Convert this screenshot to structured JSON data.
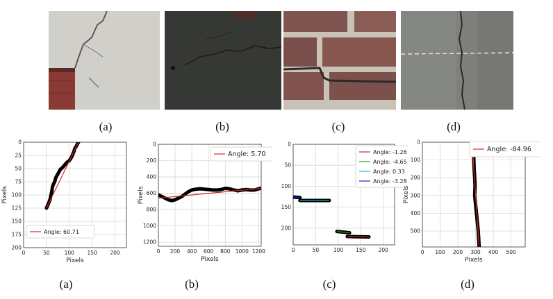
{
  "photos": [
    {
      "caption": "(a)",
      "kind": "stucco wall with crack and brick corner"
    },
    {
      "caption": "(b)",
      "kind": "dark concrete surface with crack"
    },
    {
      "caption": "(c)",
      "kind": "brick wall with stepped mortar crack"
    },
    {
      "caption": "(d)",
      "kind": "asphalt road with longitudinal crack"
    }
  ],
  "colors": {
    "crack": "#000000",
    "fit_red": "#d62728",
    "fit_green": "#2ca02c",
    "fit_cyan": "#17becf",
    "fit_blue": "#1f1fd6",
    "grid": "#d9d9d9"
  },
  "chart_data": [
    {
      "type": "line",
      "caption": "(a)",
      "xlabel": "Pixels",
      "ylabel": "Pixels",
      "xlim": [
        0,
        225
      ],
      "ylim": [
        200,
        0
      ],
      "xticks": [
        "0",
        "50",
        "100",
        "150",
        "200"
      ],
      "yticks": [
        "0",
        "25",
        "50",
        "75",
        "100",
        "125",
        "150",
        "175",
        "200"
      ],
      "legend_loc": "lower-left",
      "series": [
        {
          "name": "Angle: 60.71",
          "kind": "fit",
          "color": "#d62728",
          "x": [
            50,
            120
          ],
          "y": [
            125,
            0
          ]
        }
      ],
      "crack": {
        "x": [
          50,
          55,
          58,
          60,
          62,
          63,
          65,
          68,
          70,
          75,
          80,
          85,
          90,
          95,
          100,
          105,
          110,
          112,
          115,
          118,
          120
        ],
        "y": [
          125,
          115,
          108,
          100,
          92,
          85,
          80,
          75,
          68,
          60,
          52,
          48,
          43,
          38,
          35,
          28,
          18,
          12,
          8,
          3,
          0
        ]
      }
    },
    {
      "type": "line",
      "caption": "(b)",
      "xlabel": "Pixels",
      "ylabel": "Pixels",
      "xlim": [
        0,
        1230
      ],
      "ylim": [
        1250,
        0
      ],
      "xticks": [
        "0",
        "200",
        "400",
        "600",
        "800",
        "1000",
        "1200"
      ],
      "yticks": [
        "0",
        "200",
        "400",
        "600",
        "800",
        "1000",
        "1200"
      ],
      "legend_loc": "upper-right",
      "series": [
        {
          "name": "Angle: 5.70",
          "kind": "fit",
          "color": "#d62728",
          "x": [
            0,
            1230
          ],
          "y": [
            660,
            540
          ]
        }
      ],
      "crack": {
        "x": [
          0,
          40,
          80,
          120,
          160,
          200,
          240,
          280,
          320,
          360,
          400,
          450,
          500,
          550,
          600,
          650,
          700,
          750,
          800,
          850,
          900,
          950,
          1000,
          1050,
          1100,
          1150,
          1200,
          1230
        ],
        "y": [
          620,
          640,
          660,
          680,
          690,
          680,
          660,
          640,
          610,
          580,
          560,
          550,
          545,
          550,
          555,
          560,
          560,
          555,
          540,
          545,
          560,
          570,
          560,
          555,
          560,
          560,
          545,
          540
        ]
      }
    },
    {
      "type": "line",
      "caption": "(c)",
      "xlabel": "",
      "ylabel": "",
      "xlim": [
        0,
        225
      ],
      "ylim": [
        240,
        0
      ],
      "xticks": [
        "0",
        "50",
        "100",
        "150",
        "200"
      ],
      "yticks": [
        "0",
        "50",
        "100",
        "150",
        "200"
      ],
      "legend_loc": "upper-right",
      "series": [
        {
          "name": "Angle: -1.26",
          "kind": "fit",
          "color": "#d62728",
          "x": [
            120,
            168
          ],
          "y": [
            220,
            221
          ]
        },
        {
          "name": "Angle: -4.65",
          "kind": "fit",
          "color": "#2ca02c",
          "x": [
            97,
            125
          ],
          "y": [
            208,
            211
          ]
        },
        {
          "name": "Angle: 0.33",
          "kind": "fit",
          "color": "#17becf",
          "x": [
            15,
            80
          ],
          "y": [
            134,
            134
          ]
        },
        {
          "name": "Angle: -3.28",
          "kind": "fit",
          "color": "#1f1fd6",
          "x": [
            0,
            15
          ],
          "y": [
            126,
            127
          ]
        }
      ],
      "cracks": [
        {
          "x": [
            0,
            15
          ],
          "y": [
            126,
            127
          ]
        },
        {
          "x": [
            15,
            80
          ],
          "y": [
            134,
            134
          ]
        },
        {
          "x": [
            97,
            125
          ],
          "y": [
            208,
            211
          ]
        },
        {
          "x": [
            120,
            168
          ],
          "y": [
            220,
            221
          ]
        }
      ]
    },
    {
      "type": "line",
      "caption": "(d)",
      "xlabel": "Pixels",
      "ylabel": "Pixels",
      "xlim": [
        0,
        580
      ],
      "ylim": [
        590,
        0
      ],
      "xticks": [
        "0",
        "100",
        "200",
        "300",
        "400",
        "500"
      ],
      "yticks": [
        "0",
        "100",
        "200",
        "300",
        "400",
        "500"
      ],
      "legend_loc": "upper-right",
      "series": [
        {
          "name": "Angle: -84.96",
          "kind": "fit",
          "color": "#d62728",
          "x": [
            280,
            320
          ],
          "y": [
            0,
            590
          ]
        }
      ],
      "crack": {
        "x": [
          285,
          288,
          290,
          292,
          295,
          297,
          295,
          300,
          305,
          310,
          315,
          318,
          320
        ],
        "y": [
          0,
          50,
          100,
          150,
          200,
          250,
          300,
          350,
          400,
          450,
          500,
          550,
          590
        ]
      }
    }
  ]
}
